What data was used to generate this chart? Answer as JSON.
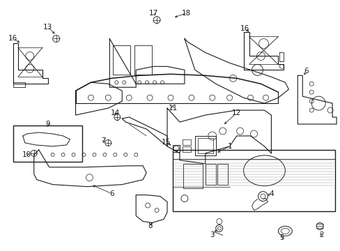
{
  "bg_color": "#ffffff",
  "line_color": "#1a1a1a",
  "figsize": [
    4.89,
    3.6
  ],
  "dpi": 100,
  "lw": 0.8,
  "font_size": 7.5
}
